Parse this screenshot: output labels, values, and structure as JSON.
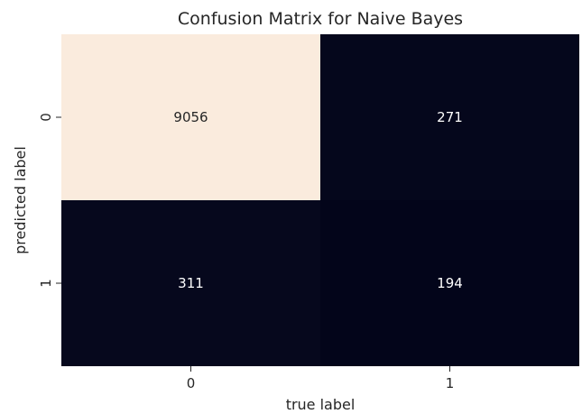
{
  "chart_data": {
    "type": "heatmap",
    "title": "Confusion Matrix for Naive Bayes",
    "xlabel": "true label",
    "ylabel": "predicted label",
    "x_categories": [
      "0",
      "1"
    ],
    "y_categories": [
      "0",
      "1"
    ],
    "values": [
      [
        9056,
        271
      ],
      [
        311,
        194
      ]
    ],
    "colorbar": false,
    "colors": {
      "low": "#03051a",
      "high": "#faebdd",
      "text_dark": "#262626",
      "text_light": "#ffffff"
    }
  }
}
